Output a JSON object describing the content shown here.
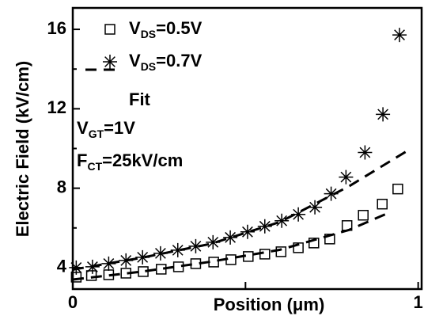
{
  "chart_data": {
    "type": "scatter",
    "xlabel": "Position (μm)",
    "ylabel": "Electric Field (kV/cm)",
    "xlim": [
      0,
      1.01
    ],
    "ylim": [
      2.92,
      17.08
    ],
    "xticks": [
      0,
      1
    ],
    "xminorticks": [
      0.5
    ],
    "yticks": [
      4,
      8,
      12,
      16
    ],
    "yminorticks": [
      6,
      10,
      14
    ],
    "annotations": [
      "VGT=1V",
      "FCT=25kV/cm"
    ],
    "series": [
      {
        "name": "VDS=0.5V",
        "marker": "square",
        "color": "#000000",
        "x": [
          0.01,
          0.054,
          0.104,
          0.154,
          0.204,
          0.256,
          0.306,
          0.356,
          0.408,
          0.458,
          0.508,
          0.556,
          0.603,
          0.653,
          0.698,
          0.744,
          0.794,
          0.841,
          0.896,
          0.941
        ],
        "values": [
          3.52,
          3.6,
          3.64,
          3.72,
          3.8,
          3.92,
          4.04,
          4.2,
          4.28,
          4.4,
          4.56,
          4.68,
          4.8,
          5.0,
          5.24,
          5.44,
          6.12,
          6.64,
          7.2,
          7.96
        ]
      },
      {
        "name": "VDS=0.7V",
        "marker": "star",
        "color": "#000000",
        "x": [
          0.01,
          0.057,
          0.104,
          0.154,
          0.202,
          0.254,
          0.304,
          0.356,
          0.406,
          0.456,
          0.506,
          0.556,
          0.605,
          0.653,
          0.701,
          0.748,
          0.791,
          0.846,
          0.898,
          0.946
        ],
        "values": [
          4.0,
          4.04,
          4.2,
          4.36,
          4.52,
          4.72,
          4.88,
          5.08,
          5.28,
          5.52,
          5.8,
          6.08,
          6.36,
          6.68,
          7.04,
          7.72,
          8.56,
          9.8,
          11.72,
          15.72
        ]
      },
      {
        "name": "Fit",
        "style": "dashed",
        "color": "#000000",
        "x": [
          0,
          0.2,
          0.4,
          0.6,
          0.8,
          0.97
        ],
        "values": [
          3.9,
          4.5,
          5.2,
          6.3,
          8.1,
          9.9
        ]
      },
      {
        "style": "dashed",
        "color": "#000000",
        "x": [
          0,
          0.2,
          0.4,
          0.6,
          0.8,
          0.92
        ],
        "values": [
          3.4,
          3.8,
          4.3,
          4.9,
          5.9,
          6.8
        ]
      }
    ]
  }
}
